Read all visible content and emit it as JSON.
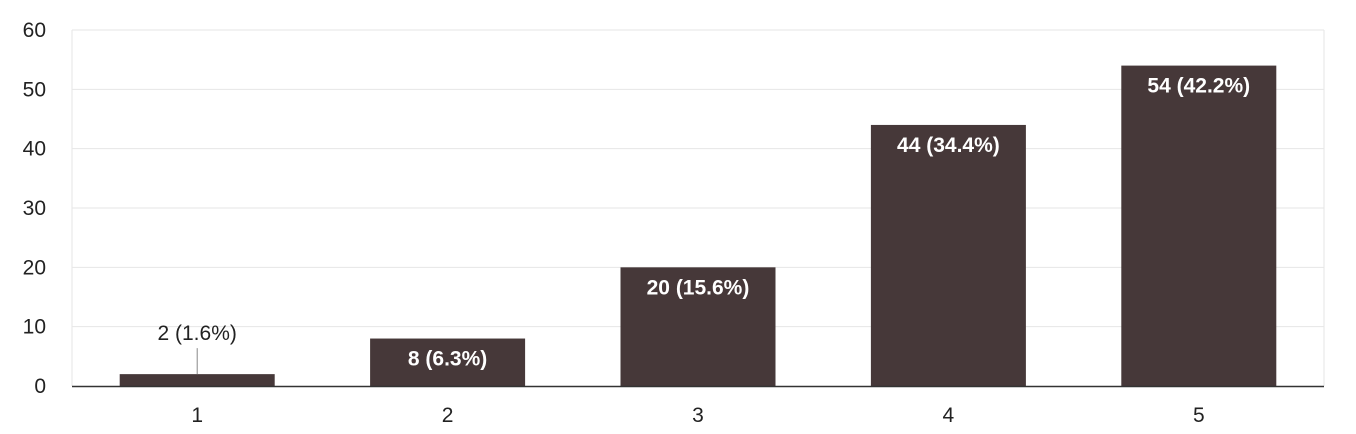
{
  "chart_data": {
    "type": "bar",
    "title": "",
    "xlabel": "",
    "ylabel": "",
    "categories": [
      "1",
      "2",
      "3",
      "4",
      "5"
    ],
    "values": [
      2,
      8,
      20,
      44,
      54
    ],
    "data_labels": [
      "2 (1.6%)",
      "8 (6.3%)",
      "20 (15.6%)",
      "44 (34.4%)",
      "54 (42.2%)"
    ],
    "ylim": [
      0,
      60
    ],
    "yticks": [
      "0",
      "10",
      "20",
      "30",
      "40",
      "50",
      "60"
    ],
    "grid": true,
    "legend": "none",
    "colors": {
      "bar": "#463839",
      "grid": "#e6e6e6",
      "axis": "#333333",
      "label_inside": "#ffffff",
      "label_outside": "#222222"
    }
  }
}
